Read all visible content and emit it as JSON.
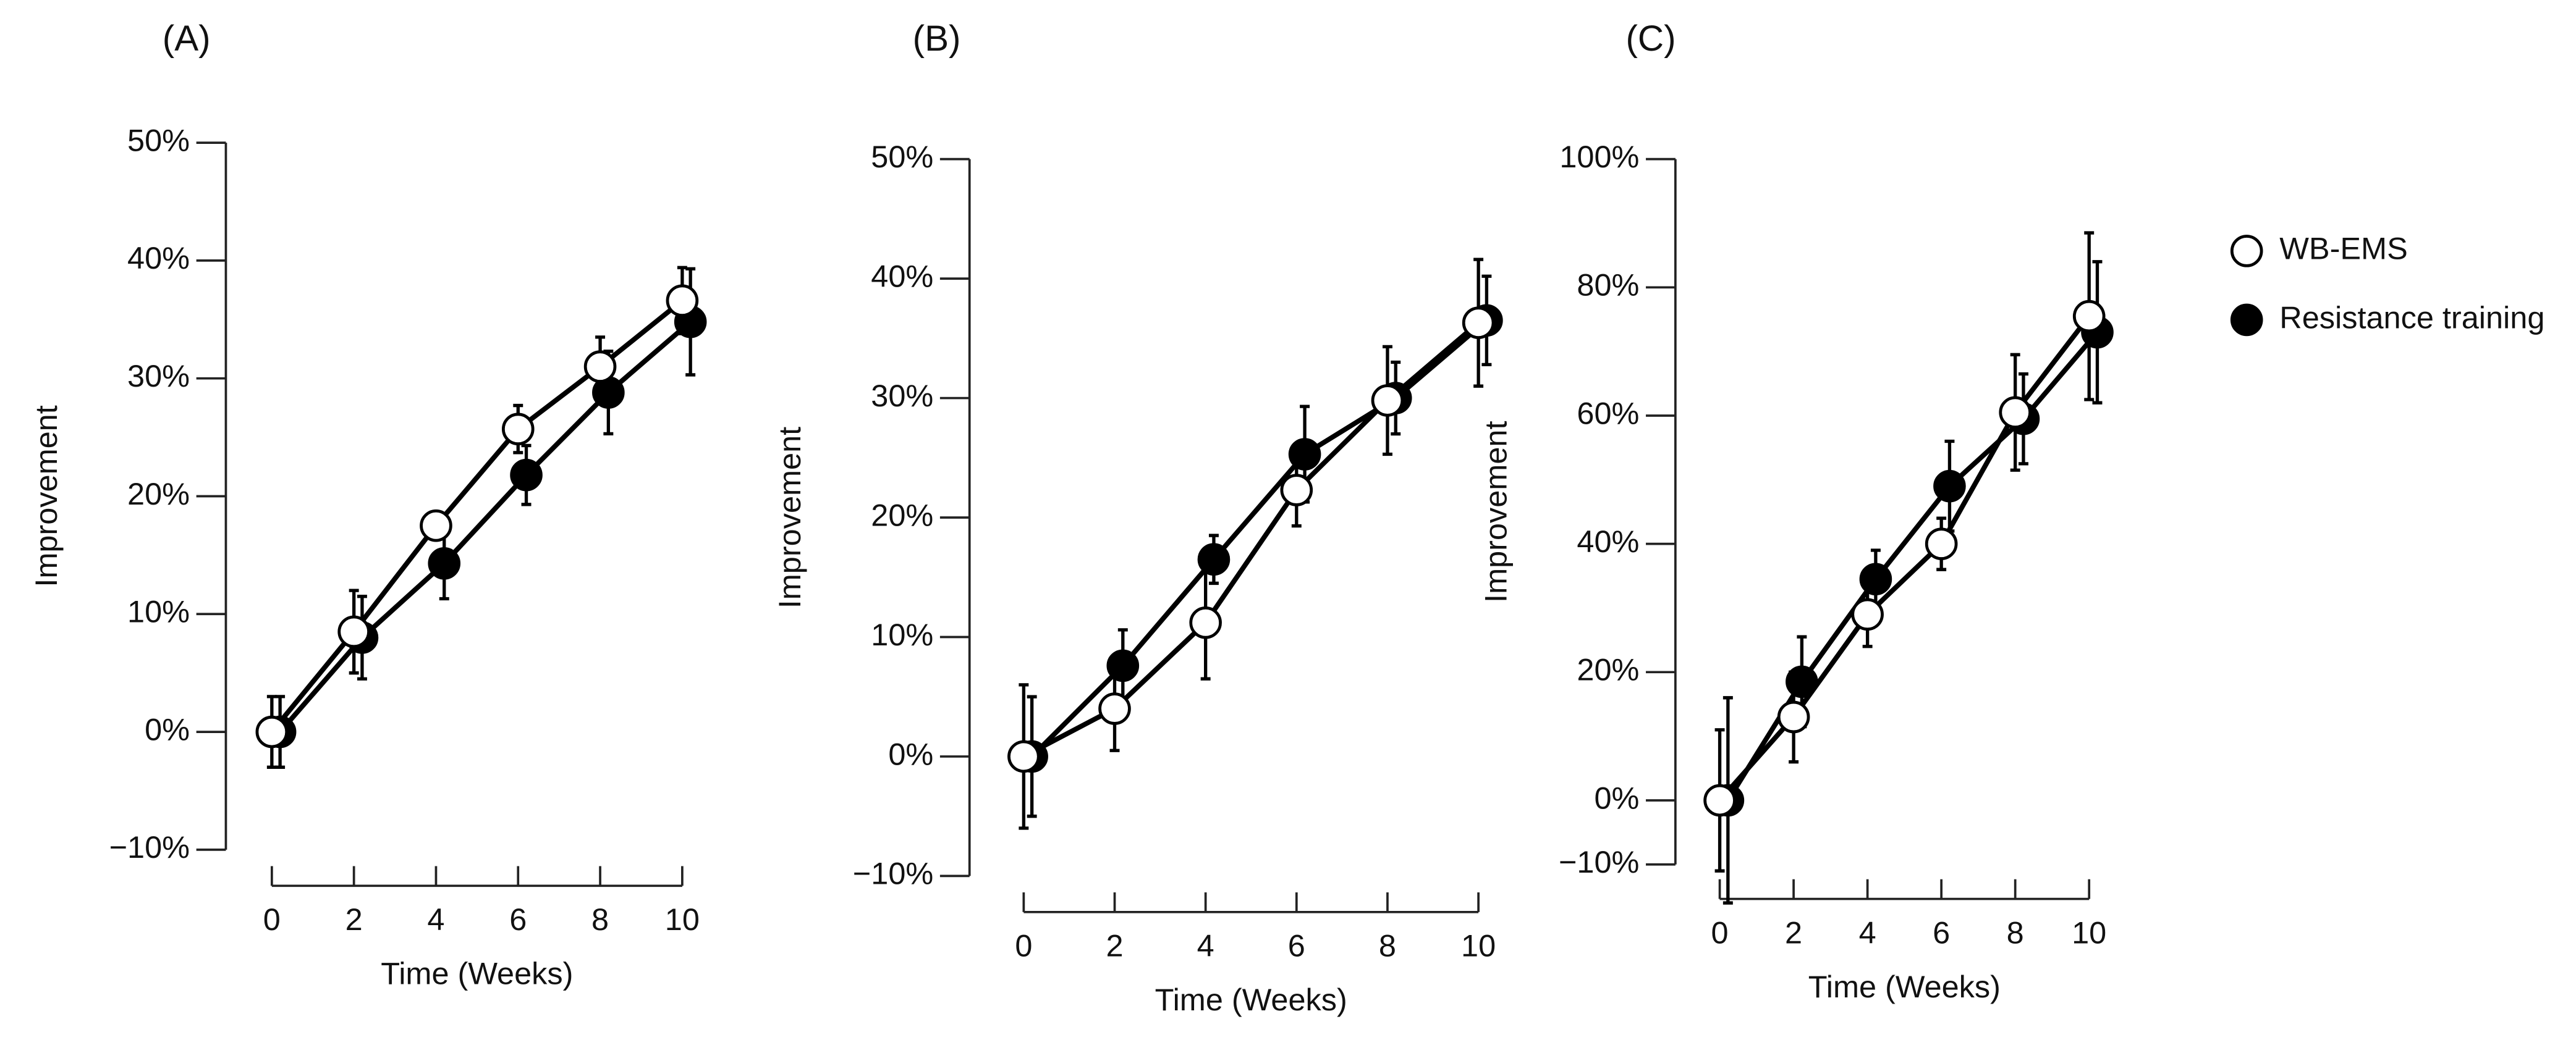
{
  "chart_data": [
    {
      "type": "line",
      "title": "(A)",
      "x_label": "Time (Weeks)",
      "y_label": "Improvement",
      "x": [
        0,
        2,
        4,
        6,
        8,
        10
      ],
      "xlim": [
        0,
        10
      ],
      "xticks": [
        0,
        2,
        4,
        6,
        8,
        10
      ],
      "ylim": [
        -10,
        50
      ],
      "yticks": [
        {
          "value": -10,
          "label": "−10%"
        },
        {
          "value": 0,
          "label": "0%"
        },
        {
          "value": 10,
          "label": "10%"
        },
        {
          "value": 20,
          "label": "20%"
        },
        {
          "value": 30,
          "label": "30%"
        },
        {
          "value": 40,
          "label": "40%"
        },
        {
          "value": 50,
          "label": "50%"
        }
      ],
      "series": [
        {
          "name": "WB-EMS",
          "color": "#ffffff",
          "values": [
            0,
            8.5,
            17.5,
            25.7,
            31,
            36.6
          ],
          "errors": [
            3,
            3.5,
            0,
            2,
            2.5,
            2.8
          ]
        },
        {
          "name": "Resistance training",
          "color": "#000000",
          "values": [
            0,
            8,
            14.3,
            21.8,
            28.8,
            34.8
          ],
          "errors": [
            3,
            3.5,
            3,
            2.5,
            3.5,
            4.5
          ]
        }
      ]
    },
    {
      "type": "line",
      "title": "(B)",
      "x_label": "Time (Weeks)",
      "y_label": "Improvement",
      "x": [
        0,
        2,
        4,
        6,
        8,
        10
      ],
      "xlim": [
        0,
        10
      ],
      "xticks": [
        0,
        2,
        4,
        6,
        8,
        10
      ],
      "ylim": [
        -10,
        50
      ],
      "yticks": [
        {
          "value": -10,
          "label": "−10%"
        },
        {
          "value": 0,
          "label": "0%"
        },
        {
          "value": 10,
          "label": "10%"
        },
        {
          "value": 20,
          "label": "20%"
        },
        {
          "value": 30,
          "label": "30%"
        },
        {
          "value": 40,
          "label": "40%"
        },
        {
          "value": 50,
          "label": "50%"
        }
      ],
      "series": [
        {
          "color": "#ffffff",
          "values": [
            0,
            4,
            11.2,
            22.3,
            29.8,
            36.3
          ],
          "errors": [
            6,
            3.5,
            4.7,
            3,
            4.5,
            5.3
          ]
        },
        {
          "color": "#000000",
          "values": [
            0,
            7.6,
            16.5,
            25.3,
            30,
            36.5
          ],
          "errors": [
            5,
            3,
            2,
            4,
            3,
            3.7
          ]
        }
      ]
    },
    {
      "type": "line",
      "title": "(C)",
      "x_label": "Time (Weeks)",
      "y_label": "Improvement",
      "x": [
        0,
        2,
        4,
        6,
        8,
        10
      ],
      "xlim": [
        0,
        10
      ],
      "xticks": [
        0,
        2,
        4,
        6,
        8,
        10
      ],
      "ylim": [
        -10,
        100
      ],
      "yticks": [
        {
          "value": -10,
          "label": "−10%"
        },
        {
          "value": 0,
          "label": "0%"
        },
        {
          "value": 20,
          "label": "20%"
        },
        {
          "value": 40,
          "label": "40%"
        },
        {
          "value": 60,
          "label": "60%"
        },
        {
          "value": 80,
          "label": "80%"
        },
        {
          "value": 100,
          "label": "100%"
        }
      ],
      "series": [
        {
          "color": "#ffffff",
          "values": [
            0,
            13,
            29,
            40,
            60.5,
            75.5
          ],
          "errors": [
            11,
            7,
            5,
            4,
            9,
            13
          ]
        },
        {
          "color": "#000000",
          "values": [
            0,
            18.5,
            34.5,
            49,
            59.5,
            73
          ],
          "errors": [
            16,
            7,
            4.5,
            7,
            7,
            11
          ]
        }
      ]
    }
  ]
}
